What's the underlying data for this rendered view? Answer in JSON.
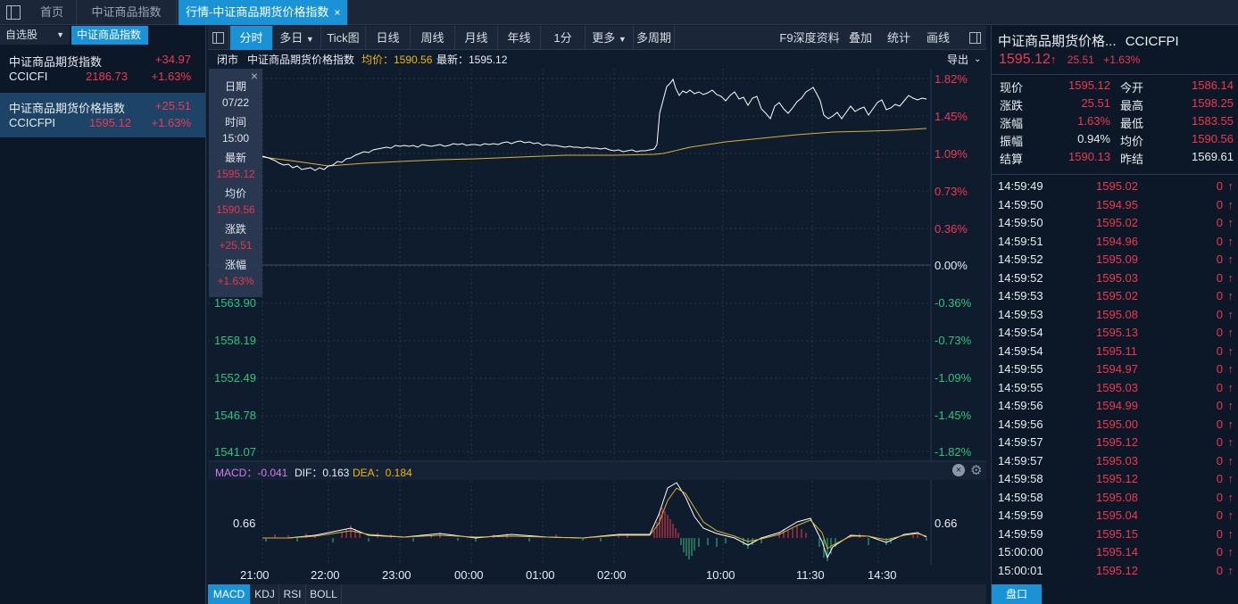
{
  "tabs": {
    "home": "首页",
    "index": "中证商品指数",
    "active": "行情-中证商品期货价格指数",
    "close": "×"
  },
  "left": {
    "watchlist": "自选股",
    "dropdown": "▼",
    "group": "中证商品指数",
    "rows": [
      {
        "name": "中证商品期货指数",
        "change": "+34.97",
        "code": "CCICFI",
        "price": "2186.73",
        "pct": "+1.63%"
      },
      {
        "name": "中证商品期货价格指数",
        "change": "+25.51",
        "code": "CCICFPI",
        "price": "1595.12",
        "pct": "+1.63%"
      }
    ]
  },
  "toolbar": {
    "items": [
      "分时",
      "多日",
      "Tick图",
      "日线",
      "周线",
      "月线",
      "年线",
      "1分",
      "更多",
      "多周期"
    ],
    "right_items": [
      "F9深度资料",
      "叠加",
      "统计",
      "画线"
    ]
  },
  "chart_head": {
    "status": "闭市",
    "name": "中证商品期货价格指数",
    "avg_label": "均价：1590.56",
    "last_label": "最新：1595.12",
    "exit": "导出"
  },
  "price_axis": {
    "left_labels": [
      "1563.90",
      "1558.19",
      "1552.49",
      "1546.78",
      "1541.07"
    ],
    "right_labels": [
      "1.82%",
      "1.45%",
      "1.09%",
      "0.73%",
      "0.36%",
      "0.00%",
      "-0.36%",
      "-0.73%",
      "-1.09%",
      "-1.45%",
      "-1.82%"
    ]
  },
  "tooltip": {
    "date_label": "日期",
    "date": "07/22",
    "time_label": "时间",
    "time": "15:00",
    "last_label": "最新",
    "last": "1595.12",
    "avg_label": "均价",
    "avg": "1590.56",
    "chg_label": "涨跌",
    "chg": "+25.51",
    "pct_label": "涨幅",
    "pct": "+1.63%"
  },
  "macd": {
    "macd_label": "MACD：-0.041",
    "dif_label": "DIF：0.163",
    "dea_label": "DEA：0.184",
    "axis_value": "0.66"
  },
  "time_axis": [
    "21:00",
    "22:00",
    "23:00",
    "00:00",
    "01:00",
    "02:00",
    "10:00",
    "11:30",
    "14:30"
  ],
  "bottom_tabs": [
    "MACD",
    "KDJ",
    "RSI",
    "BOLL"
  ],
  "quote": {
    "title": "中证商品期货价格...",
    "code": "CCICFPI",
    "price": "1595.12",
    "arrow": "🡅",
    "change": "25.51",
    "pct": "+1.63%",
    "fields": [
      {
        "l1": "现价",
        "v1": "1595.12",
        "l2": "今开",
        "v2": "1586.14"
      },
      {
        "l1": "涨跌",
        "v1": "25.51",
        "l2": "最高",
        "v2": "1598.25"
      },
      {
        "l1": "涨幅",
        "v1": "1.63%",
        "l2": "最低",
        "v2": "1583.55"
      },
      {
        "l1": "振幅",
        "v1": "0.94%",
        "l2": "均价",
        "v2": "1590.56"
      },
      {
        "l1": "结算",
        "v1": "1590.13",
        "l2": "昨结",
        "v2": "1569.61"
      }
    ]
  },
  "ticks": [
    {
      "t": "14:59:49",
      "p": "1595.02",
      "v": "0"
    },
    {
      "t": "14:59:50",
      "p": "1594.95",
      "v": "0"
    },
    {
      "t": "14:59:50",
      "p": "1595.02",
      "v": "0"
    },
    {
      "t": "14:59:51",
      "p": "1594.96",
      "v": "0"
    },
    {
      "t": "14:59:52",
      "p": "1595.09",
      "v": "0"
    },
    {
      "t": "14:59:52",
      "p": "1595.03",
      "v": "0"
    },
    {
      "t": "14:59:53",
      "p": "1595.02",
      "v": "0"
    },
    {
      "t": "14:59:53",
      "p": "1595.08",
      "v": "0"
    },
    {
      "t": "14:59:54",
      "p": "1595.13",
      "v": "0"
    },
    {
      "t": "14:59:54",
      "p": "1595.11",
      "v": "0"
    },
    {
      "t": "14:59:55",
      "p": "1594.97",
      "v": "0"
    },
    {
      "t": "14:59:55",
      "p": "1595.03",
      "v": "0"
    },
    {
      "t": "14:59:56",
      "p": "1594.99",
      "v": "0"
    },
    {
      "t": "14:59:56",
      "p": "1595.00",
      "v": "0"
    },
    {
      "t": "14:59:57",
      "p": "1595.12",
      "v": "0"
    },
    {
      "t": "14:59:57",
      "p": "1595.03",
      "v": "0"
    },
    {
      "t": "14:59:58",
      "p": "1595.12",
      "v": "0"
    },
    {
      "t": "14:59:58",
      "p": "1595.08",
      "v": "0"
    },
    {
      "t": "14:59:59",
      "p": "1595.04",
      "v": "0"
    },
    {
      "t": "14:59:59",
      "p": "1595.15",
      "v": "0"
    },
    {
      "t": "15:00:00",
      "p": "1595.14",
      "v": "0"
    },
    {
      "t": "15:00:01",
      "p": "1595.12",
      "v": "0"
    }
  ],
  "pankou": "盘口",
  "colors": {
    "up": "#f0384e",
    "down": "#2fc37a",
    "accent": "#1a93d6",
    "avg_line": "#d9b23a",
    "price_line": "#ffffff"
  }
}
